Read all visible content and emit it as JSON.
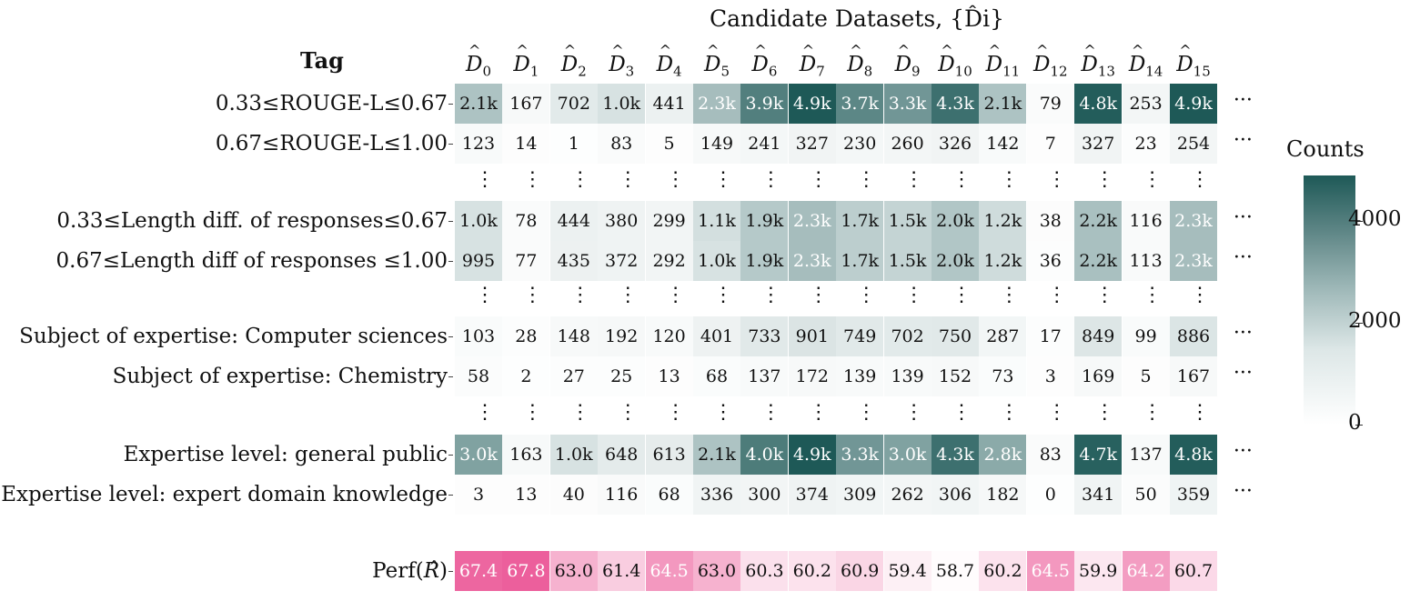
{
  "chart_data": {
    "type": "heatmap",
    "title": "Candidate Datasets, {D̂i}",
    "row_axis_title": "Tag",
    "columns": [
      "D0",
      "D1",
      "D2",
      "D3",
      "D4",
      "D5",
      "D6",
      "D7",
      "D8",
      "D9",
      "D10",
      "D11",
      "D12",
      "D13",
      "D14",
      "D15"
    ],
    "rows": [
      {
        "label": "0.33≤ROUGE-L≤0.67",
        "values": [
          2100,
          167,
          702,
          1000,
          441,
          2300,
          3900,
          4900,
          3700,
          3300,
          4300,
          2100,
          79,
          4800,
          253,
          4900
        ],
        "text": [
          "2.1k",
          "167",
          "702",
          "1.0k",
          "441",
          "2.3k",
          "3.9k",
          "4.9k",
          "3.7k",
          "3.3k",
          "4.3k",
          "2.1k",
          "79",
          "4.8k",
          "253",
          "4.9k"
        ]
      },
      {
        "label": "0.67≤ROUGE-L≤1.00",
        "values": [
          123,
          14,
          1,
          83,
          5,
          149,
          241,
          327,
          230,
          260,
          326,
          142,
          7,
          327,
          23,
          254
        ],
        "text": [
          "123",
          "14",
          "1",
          "83",
          "5",
          "149",
          "241",
          "327",
          "230",
          "260",
          "326",
          "142",
          "7",
          "327",
          "23",
          "254"
        ]
      },
      {
        "label": "0.33≤Length diff. of responses≤0.67",
        "values": [
          1000,
          78,
          444,
          380,
          299,
          1100,
          1900,
          2300,
          1700,
          1500,
          2000,
          1200,
          38,
          2200,
          116,
          2300
        ],
        "text": [
          "1.0k",
          "78",
          "444",
          "380",
          "299",
          "1.1k",
          "1.9k",
          "2.3k",
          "1.7k",
          "1.5k",
          "2.0k",
          "1.2k",
          "38",
          "2.2k",
          "116",
          "2.3k"
        ]
      },
      {
        "label": "0.67≤Length diff of responses ≤1.00",
        "values": [
          995,
          77,
          435,
          372,
          292,
          1000,
          1900,
          2300,
          1700,
          1500,
          2000,
          1200,
          36,
          2200,
          113,
          2300
        ],
        "text": [
          "995",
          "77",
          "435",
          "372",
          "292",
          "1.0k",
          "1.9k",
          "2.3k",
          "1.7k",
          "1.5k",
          "2.0k",
          "1.2k",
          "36",
          "2.2k",
          "113",
          "2.3k"
        ]
      },
      {
        "label": "Subject of expertise: Computer sciences",
        "values": [
          103,
          28,
          148,
          192,
          120,
          401,
          733,
          901,
          749,
          702,
          750,
          287,
          17,
          849,
          99,
          886
        ],
        "text": [
          "103",
          "28",
          "148",
          "192",
          "120",
          "401",
          "733",
          "901",
          "749",
          "702",
          "750",
          "287",
          "17",
          "849",
          "99",
          "886"
        ]
      },
      {
        "label": "Subject of expertise: Chemistry",
        "values": [
          58,
          2,
          27,
          25,
          13,
          68,
          137,
          172,
          139,
          139,
          152,
          73,
          3,
          169,
          5,
          167
        ],
        "text": [
          "58",
          "2",
          "27",
          "25",
          "13",
          "68",
          "137",
          "172",
          "139",
          "139",
          "152",
          "73",
          "3",
          "169",
          "5",
          "167"
        ]
      },
      {
        "label": "Expertise level: general public",
        "values": [
          3000,
          163,
          1000,
          648,
          613,
          2100,
          4000,
          4900,
          3300,
          3000,
          4300,
          2800,
          83,
          4700,
          137,
          4800
        ],
        "text": [
          "3.0k",
          "163",
          "1.0k",
          "648",
          "613",
          "2.1k",
          "4.0k",
          "4.9k",
          "3.3k",
          "3.0k",
          "4.3k",
          "2.8k",
          "83",
          "4.7k",
          "137",
          "4.8k"
        ]
      },
      {
        "label": "Expertise level: expert domain knowledge",
        "values": [
          3,
          13,
          40,
          116,
          68,
          336,
          300,
          374,
          309,
          262,
          306,
          182,
          0,
          341,
          50,
          359
        ],
        "text": [
          "3",
          "13",
          "40",
          "116",
          "68",
          "336",
          "300",
          "374",
          "309",
          "262",
          "306",
          "182",
          "0",
          "341",
          "50",
          "359"
        ]
      }
    ],
    "perf_row": {
      "label": "Perf(R̂)",
      "values": [
        67.4,
        67.8,
        63.0,
        61.4,
        64.5,
        63.0,
        60.3,
        60.2,
        60.9,
        59.4,
        58.7,
        60.2,
        64.5,
        59.9,
        64.2,
        60.7
      ],
      "text": [
        "67.4",
        "67.8",
        "63.0",
        "61.4",
        "64.5",
        "63.0",
        "60.3",
        "60.2",
        "60.9",
        "59.4",
        "58.7",
        "60.2",
        "64.5",
        "59.9",
        "64.2",
        "60.7"
      ]
    },
    "colorbar": {
      "title": "Counts",
      "ticks": [
        0,
        2000,
        4000
      ],
      "tick_labels": [
        "0",
        "2000",
        "4000"
      ],
      "vmin": 0,
      "vmax": 4900
    },
    "colors": {
      "count_high": "#1e5957",
      "count_low": "#ffffff",
      "perf_high": "#ec5f9c",
      "perf_low": "#ffffff"
    },
    "continuation_marker": "···",
    "row_gap_marker": "⋮"
  }
}
